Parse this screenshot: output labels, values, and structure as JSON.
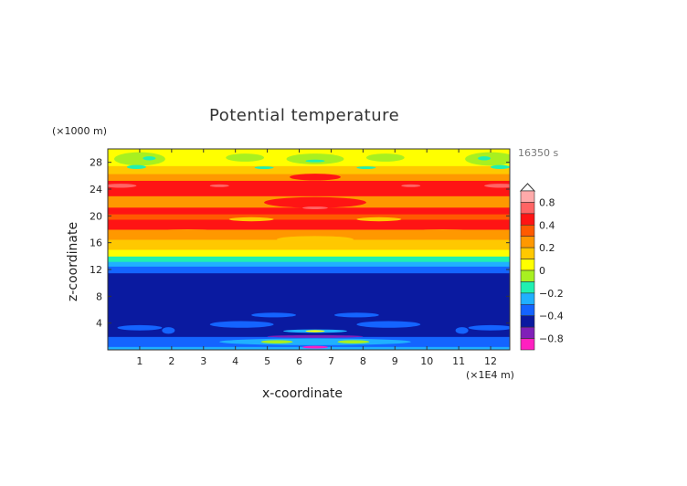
{
  "chart_data": {
    "type": "heatmap",
    "title": "Potential temperature",
    "xlabel": "x-coordinate",
    "ylabel": "z-coordinate",
    "x_unit": "(×1E4 m)",
    "y_unit": "(×1000 m)",
    "time_label": "16350 s",
    "xlim": [
      0,
      12.6
    ],
    "ylim": [
      0,
      30
    ],
    "x_ticks": [
      "1",
      "2",
      "3",
      "4",
      "5",
      "6",
      "7",
      "8",
      "9",
      "10",
      "11",
      "12"
    ],
    "y_ticks": [
      "4",
      "8",
      "12",
      "16",
      "20",
      "24",
      "28"
    ],
    "colorbar": {
      "levels": [
        1.0,
        0.8,
        0.6,
        0.4,
        0.3,
        0.2,
        0.1,
        0,
        -0.1,
        -0.2,
        -0.3,
        -0.4,
        -0.6,
        -0.8,
        -1.0
      ],
      "colors": [
        "#ffaaaa",
        "#ff6464",
        "#ff1414",
        "#ff5a00",
        "#ff9800",
        "#ffc800",
        "#ffff00",
        "#a8f020",
        "#20f0b0",
        "#20b0ff",
        "#1464ff",
        "#0a1aa0",
        "#8020b8",
        "#ff20c0"
      ],
      "labels": [
        "0.8",
        "0.4",
        "0.2",
        "0",
        "−0.2",
        "−0.4",
        "−0.8"
      ],
      "label_values": [
        0.8,
        0.4,
        0.2,
        0,
        -0.2,
        -0.4,
        -0.8
      ]
    },
    "z_profile": [
      {
        "z0": 0,
        "z1": 0.5,
        "value": -0.25
      },
      {
        "z0": 0.5,
        "z1": 2,
        "value": -0.35
      },
      {
        "z0": 2,
        "z1": 11.5,
        "value": -0.5
      },
      {
        "z0": 11.5,
        "z1": 12.5,
        "value": -0.35
      },
      {
        "z0": 12.5,
        "z1": 13.2,
        "value": -0.25
      },
      {
        "z0": 13.2,
        "z1": 14,
        "value": -0.15
      },
      {
        "z0": 14,
        "z1": 15,
        "value": 0.05
      },
      {
        "z0": 15,
        "z1": 16.5,
        "value": 0.15
      },
      {
        "z0": 16.5,
        "z1": 18,
        "value": 0.25
      },
      {
        "z0": 18,
        "z1": 19.5,
        "value": 0.45
      },
      {
        "z0": 19.5,
        "z1": 20.3,
        "value": 0.35
      },
      {
        "z0": 20.3,
        "z1": 21.3,
        "value": 0.45
      },
      {
        "z0": 21.3,
        "z1": 23,
        "value": 0.25
      },
      {
        "z0": 23,
        "z1": 25.3,
        "value": 0.45
      },
      {
        "z0": 25.3,
        "z1": 26.3,
        "value": 0.25
      },
      {
        "z0": 26.3,
        "z1": 27.5,
        "value": 0.15
      },
      {
        "z0": 27.5,
        "z1": 30,
        "value": 0.05
      }
    ],
    "features": [
      {
        "x": 6.5,
        "z": 16.5,
        "rx": 1.2,
        "rz": 0.5,
        "value": 0.15
      },
      {
        "x": 4.5,
        "z": 19.5,
        "rx": 0.7,
        "rz": 0.3,
        "value": 0.15
      },
      {
        "x": 8.5,
        "z": 19.5,
        "rx": 0.7,
        "rz": 0.3,
        "value": 0.15
      },
      {
        "x": 2.5,
        "z": 17.5,
        "rx": 1.2,
        "rz": 0.5,
        "value": 0.25
      },
      {
        "x": 10.5,
        "z": 17.5,
        "rx": 1.2,
        "rz": 0.5,
        "value": 0.25
      },
      {
        "x": 6.5,
        "z": 22,
        "rx": 1.6,
        "rz": 0.8,
        "value": 0.45
      },
      {
        "x": 6.5,
        "z": 25.8,
        "rx": 0.8,
        "rz": 0.5,
        "value": 0.45
      },
      {
        "x": 0.4,
        "z": 24.5,
        "rx": 0.5,
        "rz": 0.3,
        "value": 0.7
      },
      {
        "x": 12.3,
        "z": 24.5,
        "rx": 0.5,
        "rz": 0.3,
        "value": 0.7
      },
      {
        "x": 6.5,
        "z": 21.2,
        "rx": 0.4,
        "rz": 0.2,
        "value": 0.7
      },
      {
        "x": 3.5,
        "z": 24.5,
        "rx": 0.3,
        "rz": 0.2,
        "value": 0.7
      },
      {
        "x": 9.5,
        "z": 24.5,
        "rx": 0.3,
        "rz": 0.2,
        "value": 0.7
      },
      {
        "x": 1,
        "z": 28.5,
        "rx": 0.8,
        "rz": 1,
        "value": -0.05
      },
      {
        "x": 12,
        "z": 28.5,
        "rx": 0.8,
        "rz": 1,
        "value": -0.05
      },
      {
        "x": 6.5,
        "z": 28.5,
        "rx": 0.9,
        "rz": 0.8,
        "value": -0.05
      },
      {
        "x": 4.3,
        "z": 28.7,
        "rx": 0.6,
        "rz": 0.6,
        "value": -0.05
      },
      {
        "x": 8.7,
        "z": 28.7,
        "rx": 0.6,
        "rz": 0.6,
        "value": -0.05
      },
      {
        "x": 1.3,
        "z": 28.6,
        "rx": 0.2,
        "rz": 0.3,
        "value": -0.15
      },
      {
        "x": 0.9,
        "z": 27.3,
        "rx": 0.3,
        "rz": 0.3,
        "value": -0.15
      },
      {
        "x": 11.8,
        "z": 28.6,
        "rx": 0.2,
        "rz": 0.3,
        "value": -0.15
      },
      {
        "x": 12.3,
        "z": 27.3,
        "rx": 0.3,
        "rz": 0.3,
        "value": -0.15
      },
      {
        "x": 6.5,
        "z": 28.2,
        "rx": 0.3,
        "rz": 0.2,
        "value": -0.15
      },
      {
        "x": 4.9,
        "z": 27.2,
        "rx": 0.3,
        "rz": 0.2,
        "value": -0.15
      },
      {
        "x": 8.1,
        "z": 27.2,
        "rx": 0.3,
        "rz": 0.2,
        "value": -0.15
      },
      {
        "x": 1,
        "z": 3.3,
        "rx": 0.7,
        "rz": 0.4,
        "value": -0.35
      },
      {
        "x": 12,
        "z": 3.3,
        "rx": 0.7,
        "rz": 0.4,
        "value": -0.35
      },
      {
        "x": 4.2,
        "z": 3.8,
        "rx": 1,
        "rz": 0.5,
        "value": -0.35
      },
      {
        "x": 8.8,
        "z": 3.8,
        "rx": 1,
        "rz": 0.5,
        "value": -0.35
      },
      {
        "x": 5.2,
        "z": 5.2,
        "rx": 0.7,
        "rz": 0.35,
        "value": -0.35
      },
      {
        "x": 7.8,
        "z": 5.2,
        "rx": 0.7,
        "rz": 0.35,
        "value": -0.35
      },
      {
        "x": 1.9,
        "z": 2.9,
        "rx": 0.2,
        "rz": 0.5,
        "value": -0.35
      },
      {
        "x": 11.1,
        "z": 2.9,
        "rx": 0.2,
        "rz": 0.5,
        "value": -0.35
      },
      {
        "x": 6.5,
        "z": 2.8,
        "rx": 1,
        "rz": 0.25,
        "value": -0.25
      },
      {
        "x": 6.5,
        "z": 2.8,
        "rx": 0.3,
        "rz": 0.15,
        "value": 0.05
      },
      {
        "x": 6.5,
        "z": 2.0,
        "rx": 1.5,
        "rz": 0.2,
        "value": -0.7
      },
      {
        "x": 6.5,
        "z": 1.2,
        "rx": 3,
        "rz": 0.5,
        "value": -0.25
      },
      {
        "x": 5.3,
        "z": 1.2,
        "rx": 0.5,
        "rz": 0.25,
        "value": -0.05
      },
      {
        "x": 7.7,
        "z": 1.2,
        "rx": 0.5,
        "rz": 0.25,
        "value": -0.05
      },
      {
        "x": 6.5,
        "z": 0.4,
        "rx": 0.4,
        "rz": 0.2,
        "value": -0.9
      }
    ]
  }
}
